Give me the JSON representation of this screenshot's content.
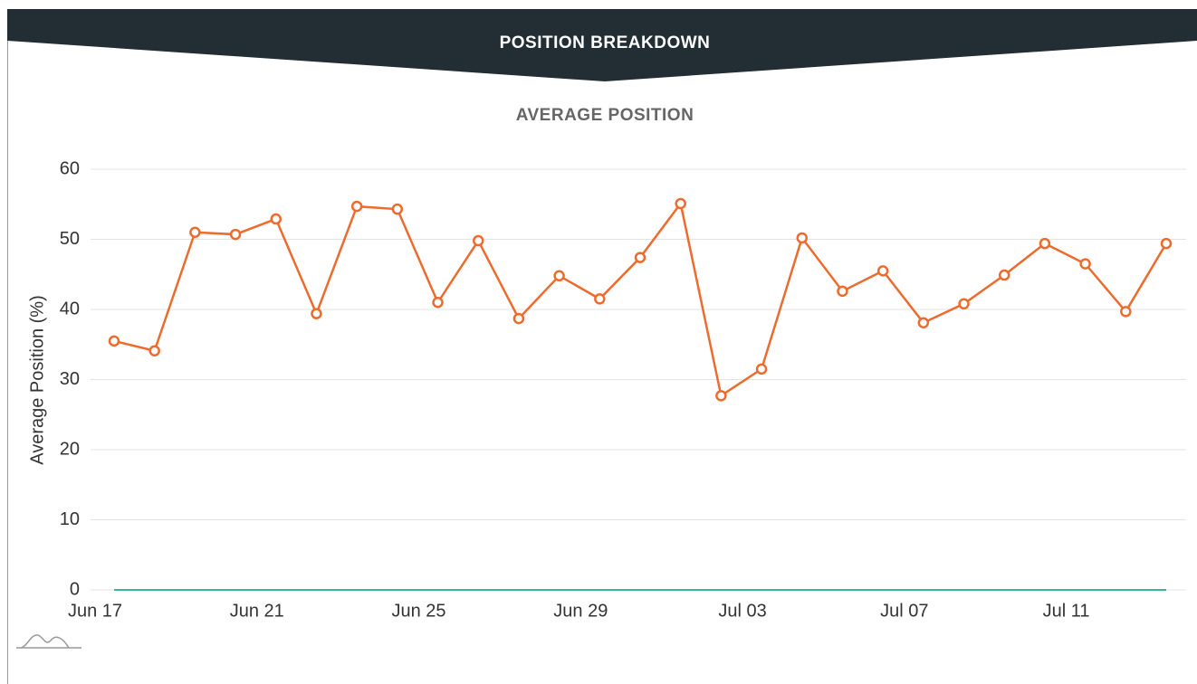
{
  "chart_data": {
    "type": "line",
    "title": "POSITION BREAKDOWN",
    "subtitle": "AVERAGE POSITION",
    "ylabel": "Average Position (%)",
    "categories": [
      "Jun 17",
      null,
      null,
      null,
      "Jun 21",
      null,
      null,
      null,
      "Jun 25",
      null,
      null,
      null,
      "Jun 29",
      null,
      null,
      null,
      "Jul 03",
      null,
      null,
      null,
      "Jul 07",
      null,
      null,
      null,
      "Jul 11",
      null,
      null
    ],
    "series": [
      {
        "color": "#ec6b2d",
        "markers": true,
        "values": [
          35.5,
          34.1,
          51.0,
          50.7,
          52.9,
          39.4,
          54.7,
          54.3,
          41.0,
          49.8,
          38.7,
          44.8,
          41.5,
          47.4,
          55.1,
          27.7,
          31.5,
          50.2,
          42.6,
          45.5,
          38.1,
          40.8,
          44.9,
          49.4,
          46.5,
          39.7,
          49.4
        ]
      },
      {
        "color": "#3cb49b",
        "markers": false,
        "values": [
          0,
          0,
          0,
          0,
          0,
          0,
          0,
          0,
          0,
          0,
          0,
          0,
          0,
          0,
          0,
          0,
          0,
          0,
          0,
          0,
          0,
          0,
          0,
          0,
          0,
          0,
          0
        ]
      }
    ],
    "ylim": [
      0,
      60
    ],
    "yticks": [
      0,
      10,
      20,
      30,
      40,
      50,
      60
    ],
    "grid": true
  }
}
